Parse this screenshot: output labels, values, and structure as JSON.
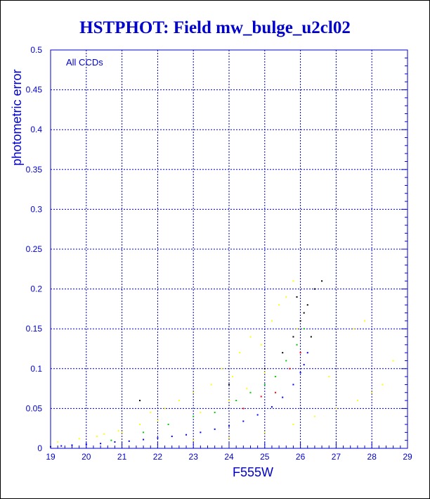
{
  "title": "HSTPHOT: Field mw_bulge_u2cl02",
  "chart_data": {
    "type": "scatter",
    "title": "HSTPHOT: Field mw_bulge_u2cl02",
    "xlabel": "F555W",
    "ylabel": "photometric error",
    "annotation": "All CCDs",
    "xlim": [
      19,
      29
    ],
    "ylim": [
      0,
      0.5
    ],
    "xticks": [
      19,
      20,
      21,
      22,
      23,
      24,
      25,
      26,
      27,
      28,
      29
    ],
    "xtick_labels": [
      "19",
      "20",
      "21",
      "22",
      "23",
      "24",
      "25",
      "26",
      "27",
      "28",
      "29"
    ],
    "yticks": [
      0,
      0.05,
      0.1,
      0.15,
      0.2,
      0.25,
      0.3,
      0.35,
      0.4,
      0.45,
      0.5
    ],
    "ytick_labels": [
      "0",
      "0.05",
      "0.1",
      "0.15",
      "0.2",
      "0.25",
      "0.3",
      "0.35",
      "0.4",
      "0.45",
      "0.5"
    ],
    "grid": true,
    "colors": {
      "axis": "#0000cc",
      "main_sequence": "#0000ff",
      "ccd_yellow": "#ffff00",
      "ccd_green": "#00cc00",
      "ccd_red": "#ff0000",
      "ccd_black": "#000000"
    },
    "series": [
      {
        "color": "#0000ff",
        "points": [
          [
            19.0,
            0.002
          ],
          [
            19.3,
            0.003
          ],
          [
            19.6,
            0.004
          ],
          [
            20.0,
            0.005
          ],
          [
            20.4,
            0.006
          ],
          [
            20.8,
            0.008
          ],
          [
            21.2,
            0.009
          ],
          [
            21.6,
            0.011
          ],
          [
            22.0,
            0.013
          ],
          [
            22.4,
            0.015
          ],
          [
            22.8,
            0.017
          ],
          [
            23.2,
            0.02
          ],
          [
            23.6,
            0.024
          ],
          [
            24.0,
            0.028
          ],
          [
            24.4,
            0.034
          ],
          [
            24.8,
            0.042
          ],
          [
            25.2,
            0.052
          ],
          [
            25.5,
            0.064
          ],
          [
            25.8,
            0.08
          ],
          [
            26.0,
            0.095
          ],
          [
            26.1,
            0.105
          ],
          [
            26.2,
            0.12
          ]
        ]
      },
      {
        "color": "#ffff00",
        "points": [
          [
            19.2,
            0.008
          ],
          [
            19.8,
            0.012
          ],
          [
            20.3,
            0.015
          ],
          [
            20.9,
            0.022
          ],
          [
            21.5,
            0.03
          ],
          [
            21.8,
            0.045
          ],
          [
            22.2,
            0.05
          ],
          [
            22.6,
            0.06
          ],
          [
            23.0,
            0.07
          ],
          [
            23.2,
            0.045
          ],
          [
            23.5,
            0.08
          ],
          [
            23.8,
            0.1
          ],
          [
            24.1,
            0.09
          ],
          [
            24.3,
            0.12
          ],
          [
            24.6,
            0.14
          ],
          [
            24.9,
            0.13
          ],
          [
            25.2,
            0.16
          ],
          [
            25.4,
            0.18
          ],
          [
            25.6,
            0.19
          ],
          [
            25.8,
            0.21
          ],
          [
            25.9,
            0.15
          ],
          [
            24.0,
            0.06
          ],
          [
            24.5,
            0.075
          ],
          [
            25.0,
            0.095
          ],
          [
            22.0,
            0.035
          ],
          [
            21.0,
            0.02
          ],
          [
            20.5,
            0.018
          ],
          [
            23.0,
            0.01
          ],
          [
            24.0,
            0.013
          ],
          [
            25.0,
            0.02
          ],
          [
            25.8,
            0.03
          ],
          [
            26.4,
            0.04
          ],
          [
            27.0,
            0.05
          ],
          [
            27.6,
            0.06
          ],
          [
            28.0,
            0.07
          ],
          [
            27.5,
            0.15
          ],
          [
            27.8,
            0.16
          ],
          [
            28.3,
            0.08
          ],
          [
            28.6,
            0.11
          ],
          [
            26.8,
            0.09
          ]
        ]
      },
      {
        "color": "#00cc00",
        "points": [
          [
            20.7,
            0.01
          ],
          [
            21.6,
            0.02
          ],
          [
            22.3,
            0.03
          ],
          [
            23.0,
            0.04
          ],
          [
            23.6,
            0.045
          ],
          [
            24.2,
            0.06
          ],
          [
            24.6,
            0.07
          ],
          [
            25.0,
            0.08
          ],
          [
            25.3,
            0.09
          ],
          [
            25.6,
            0.11
          ],
          [
            25.9,
            0.13
          ],
          [
            26.1,
            0.15
          ]
        ]
      },
      {
        "color": "#ff0000",
        "points": [
          [
            24.4,
            0.05
          ],
          [
            24.9,
            0.065
          ],
          [
            25.3,
            0.07
          ],
          [
            25.7,
            0.1
          ],
          [
            26.0,
            0.12
          ]
        ]
      },
      {
        "color": "#000000",
        "points": [
          [
            21.5,
            0.06
          ],
          [
            24.0,
            0.08
          ],
          [
            25.0,
            0.1
          ],
          [
            25.5,
            0.12
          ],
          [
            25.8,
            0.14
          ],
          [
            26.0,
            0.16
          ],
          [
            26.2,
            0.18
          ],
          [
            26.4,
            0.2
          ],
          [
            26.6,
            0.21
          ],
          [
            26.1,
            0.17
          ],
          [
            25.9,
            0.19
          ],
          [
            26.3,
            0.14
          ]
        ]
      }
    ]
  }
}
